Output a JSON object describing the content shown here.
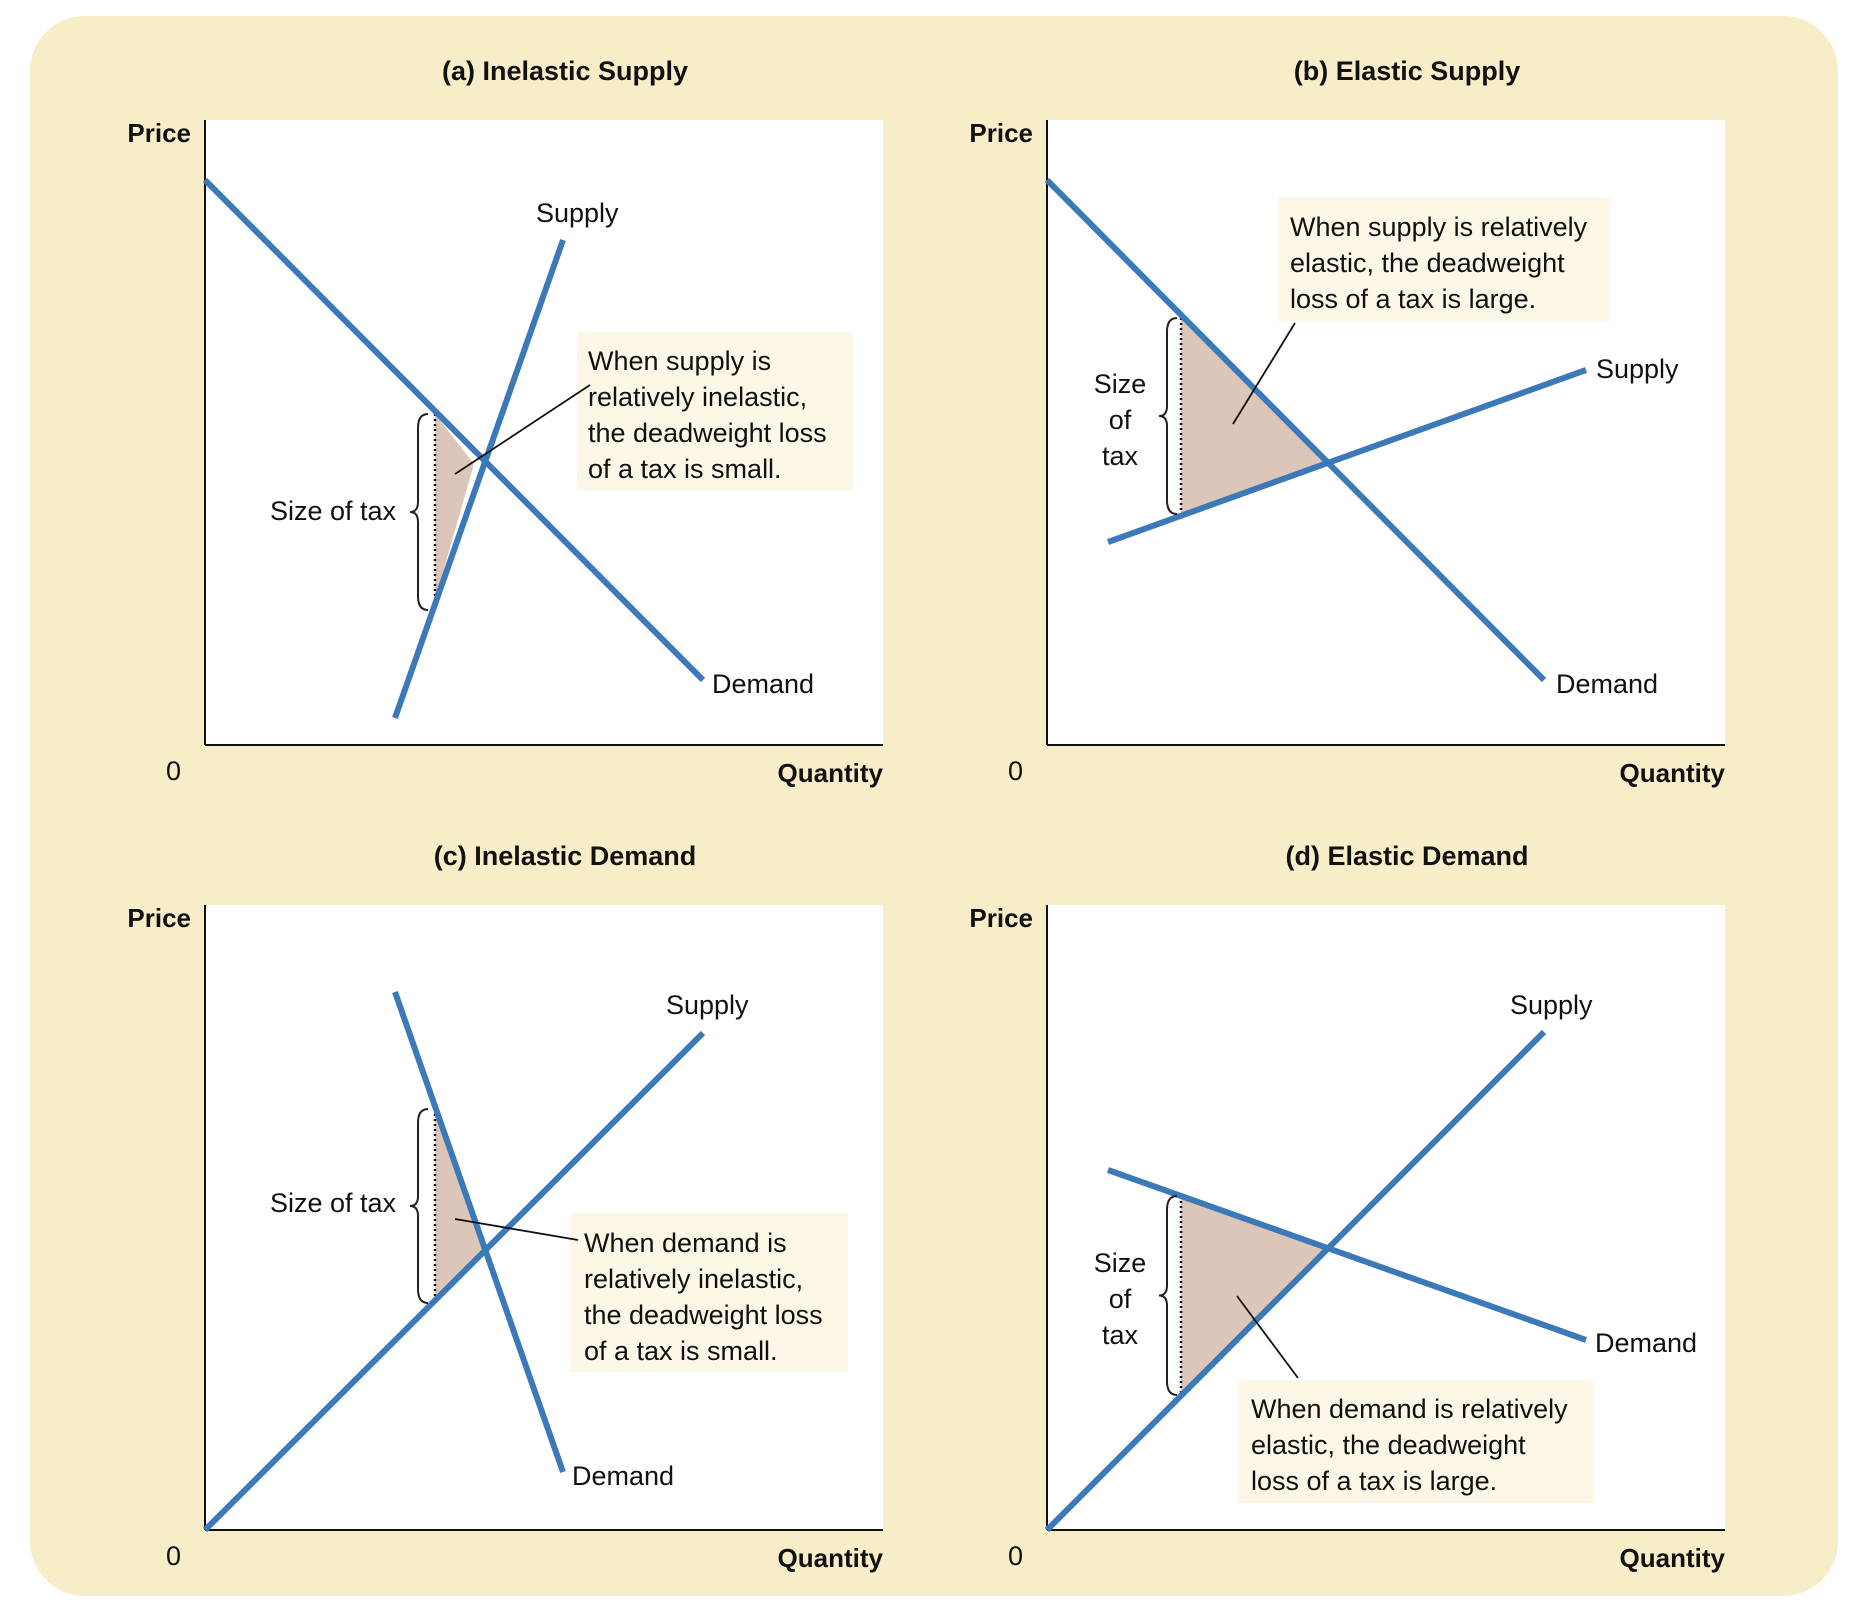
{
  "colors": {
    "frame": "#f8edc9",
    "plot_bg": "#ffffff",
    "curve": "#3b79b8",
    "deadweight_loss": "#dcc6ba",
    "annotation_bg": "#fdf7e7"
  },
  "panels": [
    {
      "title": "(a) Inelastic Supply",
      "y_label": "Price",
      "x_label": "Quantity",
      "origin": "0",
      "supply_label": "Supply",
      "demand_label": "Demand",
      "tax_label": [
        "Size of tax"
      ],
      "note": [
        "When supply is",
        "relatively inelastic,",
        "the deadweight loss",
        "of a tax is small."
      ]
    },
    {
      "title": "(b) Elastic Supply",
      "y_label": "Price",
      "x_label": "Quantity",
      "origin": "0",
      "supply_label": "Supply",
      "demand_label": "Demand",
      "tax_label": [
        "Size",
        "of",
        "tax"
      ],
      "note": [
        "When supply is relatively",
        "elastic, the deadweight",
        "loss of a tax is large."
      ]
    },
    {
      "title": "(c) Inelastic Demand",
      "y_label": "Price",
      "x_label": "Quantity",
      "origin": "0",
      "supply_label": "Supply",
      "demand_label": "Demand",
      "tax_label": [
        "Size of tax"
      ],
      "note": [
        "When demand is",
        "relatively inelastic,",
        "the deadweight loss",
        "of a tax is small."
      ]
    },
    {
      "title": "(d) Elastic Demand",
      "y_label": "Price",
      "x_label": "Quantity",
      "origin": "0",
      "supply_label": "Supply",
      "demand_label": "Demand",
      "tax_label": [
        "Size",
        "of",
        "tax"
      ],
      "note": [
        "When demand is relatively",
        "elastic, the deadweight",
        "loss of a tax is large."
      ]
    }
  ]
}
